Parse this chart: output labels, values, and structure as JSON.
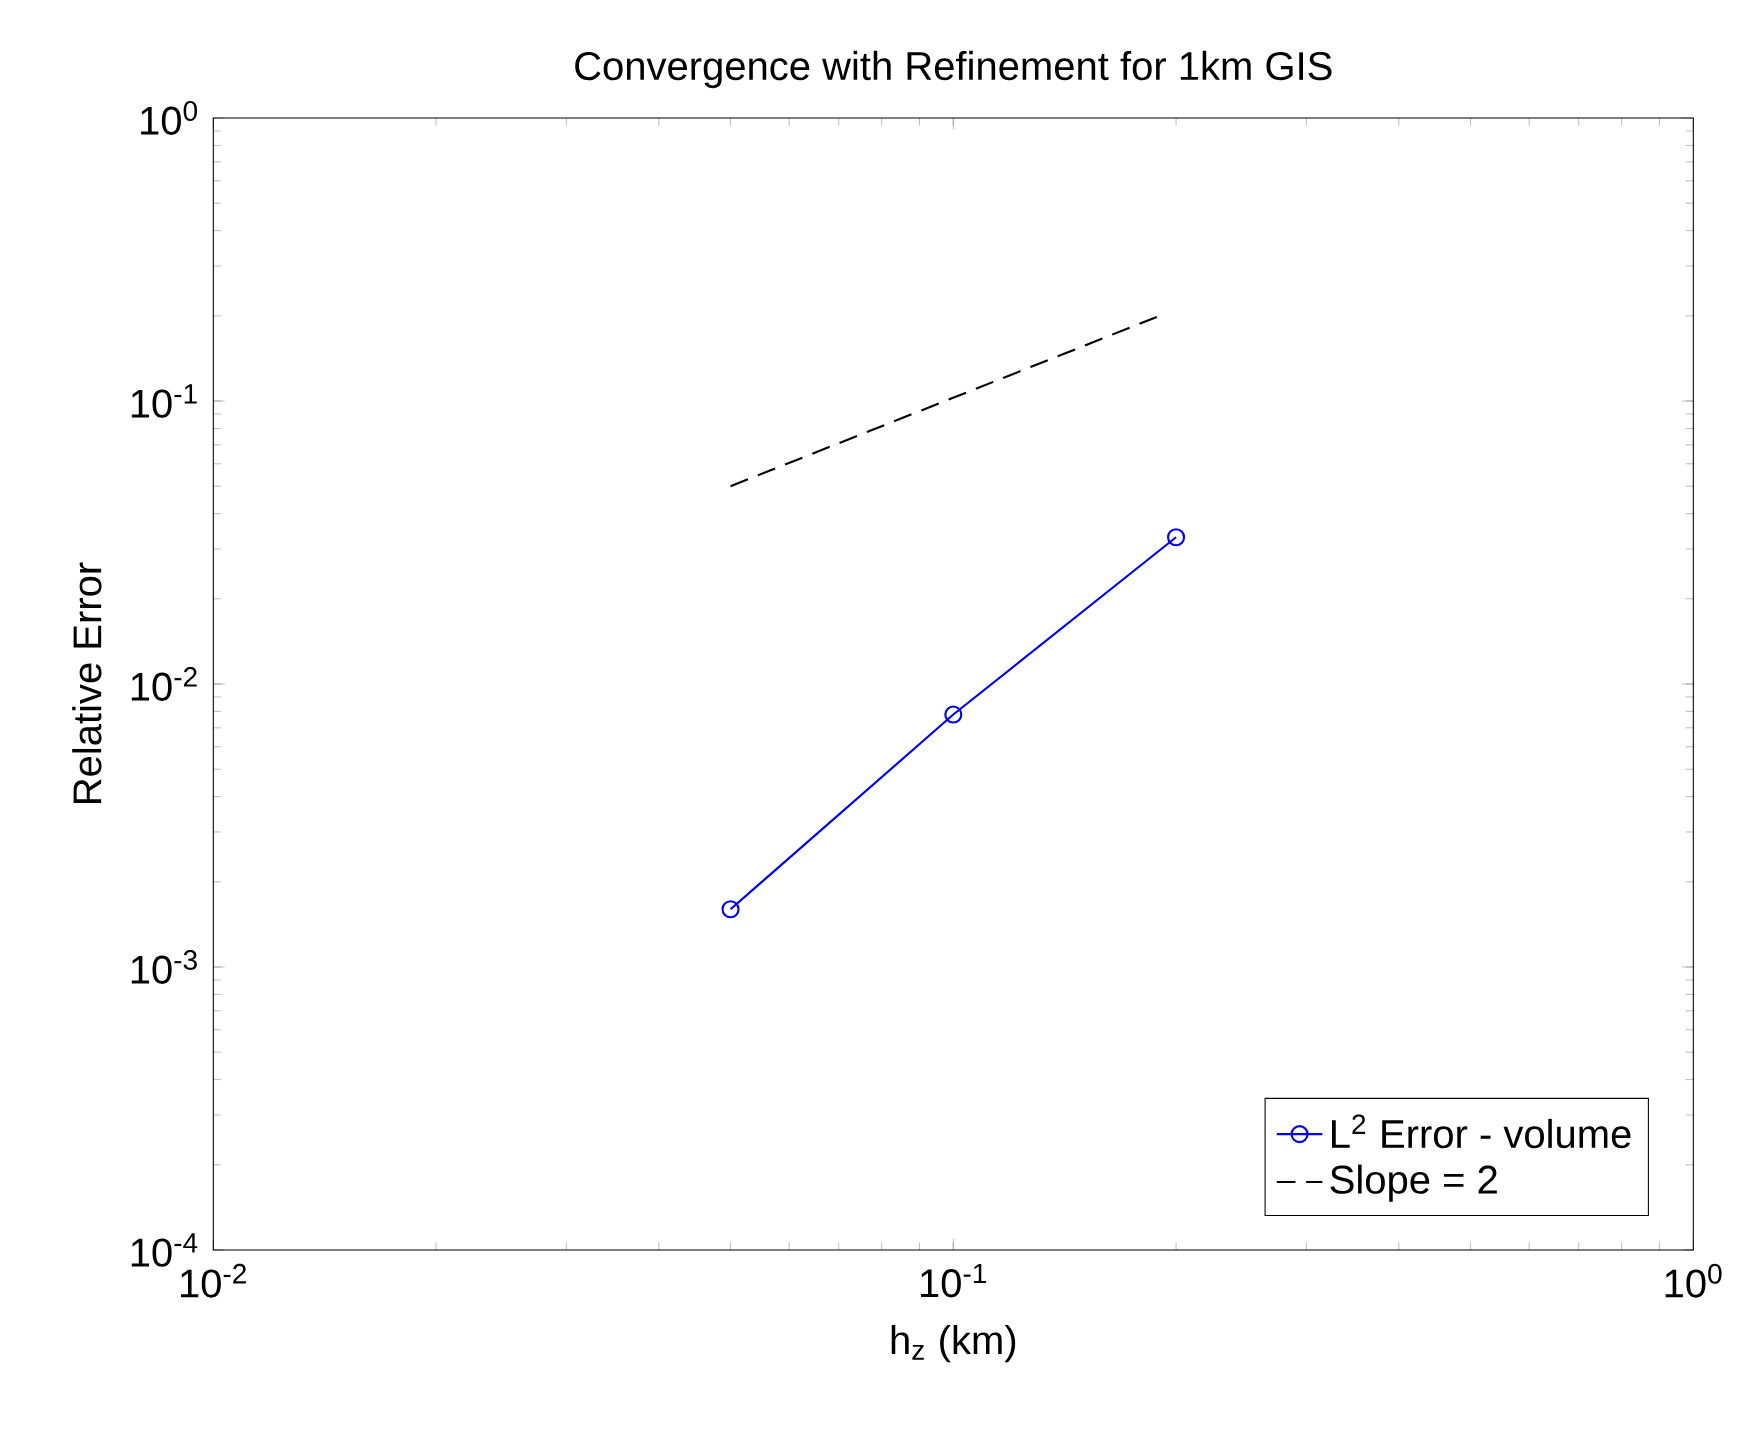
{
  "chart_data": {
    "type": "line",
    "title": "Convergence with Refinement for 1km GIS",
    "xlabel": "h$_{z}$ (km)",
    "ylabel": "Relative Error",
    "log": "xy",
    "xlim": [
      0.01,
      1
    ],
    "ylim": [
      0.0001,
      1
    ],
    "xticks": [
      {
        "value": 0.01,
        "label": "10$^{-2}$"
      },
      {
        "value": 0.1,
        "label": "10$^{-1}$"
      },
      {
        "value": 1,
        "label": "10$^{0}$"
      }
    ],
    "yticks": [
      {
        "value": 0.0001,
        "label": "10$^{-4}$"
      },
      {
        "value": 0.001,
        "label": "10$^{-3}$"
      },
      {
        "value": 0.01,
        "label": "10$^{-2}$"
      },
      {
        "value": 0.1,
        "label": "10$^{-1}$"
      },
      {
        "value": 1,
        "label": "10$^{0}$"
      }
    ],
    "legend": "bottom right",
    "grid": false,
    "series": [
      {
        "name": "L$^{2}$ Error - volume",
        "color": "#0000ff",
        "x": [
          0.05,
          0.1,
          0.2
        ],
        "values": [
          0.0016,
          0.0078,
          0.033
        ],
        "marker": "circle",
        "line_style": "solid"
      },
      {
        "name": "Slope = 2",
        "color": "#000000",
        "x": [
          0.05,
          0.19
        ],
        "values": [
          0.05,
          0.2
        ],
        "marker": "none",
        "line_style": "dashed"
      }
    ]
  }
}
